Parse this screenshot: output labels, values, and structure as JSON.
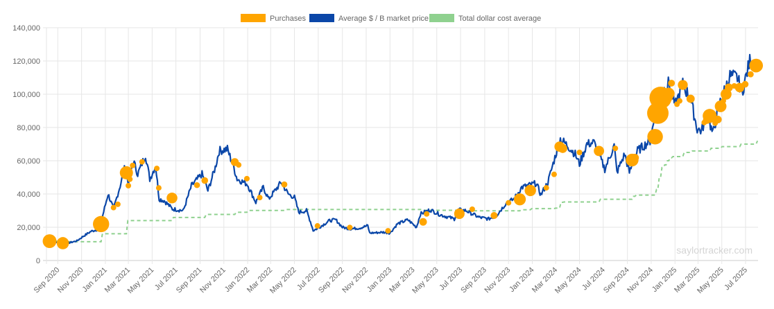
{
  "chart_data": {
    "type": "line",
    "title": "",
    "xlabel": "",
    "ylabel": "",
    "watermark": "saylortracker.com",
    "xlim": [
      "2020-08-03",
      "2025-08-02"
    ],
    "ylim": [
      0,
      140000
    ],
    "grid": true,
    "legend_position": "top",
    "y_ticks": [
      "0",
      "20,000",
      "40,000",
      "60,000",
      "80,000",
      "100,000",
      "120,000",
      "140,000"
    ],
    "y_tick_values": [
      0,
      20000,
      40000,
      60000,
      80000,
      100000,
      120000,
      140000
    ],
    "x_ticks": [
      "Sep 2020",
      "Nov 2020",
      "Jan 2021",
      "Mar 2021",
      "May 2021",
      "Jul 2021",
      "Sep 2021",
      "Nov 2021",
      "Jan 2022",
      "Mar 2022",
      "May 2022",
      "Jul 2022",
      "Sep 2022",
      "Nov 2022",
      "Jan 2023",
      "Mar 2023",
      "May 2023",
      "Jul 2023",
      "Sep 2023",
      "Nov 2023",
      "Jan 2024",
      "Mar 2024",
      "May 2024",
      "Jul 2024",
      "Sep 2024",
      "Nov 2024",
      "Jan 2025",
      "Mar 2025",
      "May 2025",
      "Jul 2025"
    ],
    "x_tick_dates": [
      "2020-09-01",
      "2020-11-01",
      "2021-01-01",
      "2021-03-01",
      "2021-05-01",
      "2021-07-01",
      "2021-09-01",
      "2021-11-01",
      "2022-01-01",
      "2022-03-01",
      "2022-05-01",
      "2022-07-01",
      "2022-09-01",
      "2022-11-01",
      "2023-01-01",
      "2023-03-01",
      "2023-05-01",
      "2023-07-01",
      "2023-09-01",
      "2023-11-01",
      "2024-01-01",
      "2024-03-01",
      "2024-05-01",
      "2024-07-01",
      "2024-09-01",
      "2024-11-01",
      "2025-01-01",
      "2025-03-01",
      "2025-05-01",
      "2025-07-01"
    ],
    "series": [
      {
        "name": "Purchases",
        "color": "#ffa500",
        "kind": "bubble",
        "points": [
          {
            "date": "2020-08-11",
            "price": 11652,
            "btc": 21454
          },
          {
            "date": "2020-09-14",
            "price": 10419,
            "btc": 16796
          },
          {
            "date": "2020-12-21",
            "price": 21925,
            "btc": 29646
          },
          {
            "date": "2021-01-22",
            "price": 31808,
            "btc": 314
          },
          {
            "date": "2021-02-02",
            "price": 33810,
            "btc": 295
          },
          {
            "date": "2021-02-24",
            "price": 52765,
            "btc": 19452
          },
          {
            "date": "2021-03-01",
            "price": 45000,
            "btc": 328
          },
          {
            "date": "2021-03-05",
            "price": 48888,
            "btc": 205
          },
          {
            "date": "2021-03-12",
            "price": 57146,
            "btc": 262
          },
          {
            "date": "2021-04-05",
            "price": 59339,
            "btc": 253
          },
          {
            "date": "2021-05-13",
            "price": 55387,
            "btc": 271
          },
          {
            "date": "2021-05-18",
            "price": 43663,
            "btc": 229
          },
          {
            "date": "2021-06-21",
            "price": 37617,
            "btc": 13005
          },
          {
            "date": "2021-08-24",
            "price": 45294,
            "btc": 3907
          },
          {
            "date": "2021-09-13",
            "price": 48099,
            "btc": 5050
          },
          {
            "date": "2021-11-29",
            "price": 59187,
            "btc": 7002
          },
          {
            "date": "2021-12-09",
            "price": 57477,
            "btc": 1434
          },
          {
            "date": "2021-12-30",
            "price": 49229,
            "btc": 1914
          },
          {
            "date": "2022-02-01",
            "price": 37865,
            "btc": 660
          },
          {
            "date": "2022-04-05",
            "price": 45714,
            "btc": 4167
          },
          {
            "date": "2022-06-29",
            "price": 20817,
            "btc": 480
          },
          {
            "date": "2022-09-20",
            "price": 19851,
            "btc": 301
          },
          {
            "date": "2022-12-27",
            "price": 17871,
            "btc": 2395
          },
          {
            "date": "2023-03-27",
            "price": 23238,
            "btc": 6455
          },
          {
            "date": "2023-04-05",
            "price": 28016,
            "btc": 1045
          },
          {
            "date": "2023-06-28",
            "price": 28136,
            "btc": 12333
          },
          {
            "date": "2023-07-31",
            "price": 30835,
            "btc": 467
          },
          {
            "date": "2023-09-25",
            "price": 27053,
            "btc": 5445
          },
          {
            "date": "2023-11-01",
            "price": 34704,
            "btc": 155
          },
          {
            "date": "2023-11-30",
            "price": 36785,
            "btc": 16130
          },
          {
            "date": "2023-12-27",
            "price": 42110,
            "btc": 14620
          },
          {
            "date": "2024-02-06",
            "price": 43723,
            "btc": 850
          },
          {
            "date": "2024-02-26",
            "price": 51813,
            "btc": 3000
          },
          {
            "date": "2024-03-11",
            "price": 68477,
            "btc": 12000
          },
          {
            "date": "2024-03-19",
            "price": 67382,
            "btc": 9245
          },
          {
            "date": "2024-05-01",
            "price": 65000,
            "btc": 164
          },
          {
            "date": "2024-06-20",
            "price": 65883,
            "btc": 11931
          },
          {
            "date": "2024-08-01",
            "price": 67455,
            "btc": 169
          },
          {
            "date": "2024-09-13",
            "price": 60408,
            "btc": 18300
          },
          {
            "date": "2024-09-20",
            "price": 61750,
            "btc": 7420
          },
          {
            "date": "2024-11-11",
            "price": 74463,
            "btc": 27200
          },
          {
            "date": "2024-11-18",
            "price": 88627,
            "btc": 51780
          },
          {
            "date": "2024-11-25",
            "price": 97862,
            "btc": 55500
          },
          {
            "date": "2024-12-02",
            "price": 95976,
            "btc": 15400
          },
          {
            "date": "2024-12-09",
            "price": 98783,
            "btc": 21550
          },
          {
            "date": "2024-12-16",
            "price": 100386,
            "btc": 15350
          },
          {
            "date": "2024-12-23",
            "price": 106662,
            "btc": 5262
          },
          {
            "date": "2025-01-06",
            "price": 94004,
            "btc": 1070
          },
          {
            "date": "2025-01-13",
            "price": 95972,
            "btc": 2530
          },
          {
            "date": "2025-01-21",
            "price": 105596,
            "btc": 11000
          },
          {
            "date": "2025-02-10",
            "price": 97255,
            "btc": 7633
          },
          {
            "date": "2025-03-17",
            "price": 82981,
            "btc": 130
          },
          {
            "date": "2025-03-24",
            "price": 84529,
            "btc": 6911
          },
          {
            "date": "2025-03-31",
            "price": 86969,
            "btc": 22048
          },
          {
            "date": "2025-04-14",
            "price": 82618,
            "btc": 3459
          },
          {
            "date": "2025-04-21",
            "price": 84785,
            "btc": 6556
          },
          {
            "date": "2025-04-28",
            "price": 92737,
            "btc": 15355
          },
          {
            "date": "2025-05-05",
            "price": 96000,
            "btc": 1895
          },
          {
            "date": "2025-05-12",
            "price": 100000,
            "btc": 13390
          },
          {
            "date": "2025-05-19",
            "price": 104000,
            "btc": 7390
          },
          {
            "date": "2025-06-02",
            "price": 105000,
            "btc": 705
          },
          {
            "date": "2025-06-16",
            "price": 104000,
            "btc": 10100
          },
          {
            "date": "2025-06-30",
            "price": 106000,
            "btc": 4980
          },
          {
            "date": "2025-07-14",
            "price": 112000,
            "btc": 4225
          },
          {
            "date": "2025-07-28",
            "price": 117256,
            "btc": 21021
          }
        ]
      },
      {
        "name": "Average $ / B market price",
        "color": "#0b47a8",
        "kind": "line",
        "points": [
          [
            "2020-08-11",
            11500
          ],
          [
            "2020-09-14",
            10400
          ],
          [
            "2020-10-01",
            10700
          ],
          [
            "2020-10-20",
            11800
          ],
          [
            "2020-11-05",
            14500
          ],
          [
            "2020-11-25",
            17500
          ],
          [
            "2020-12-10",
            18500
          ],
          [
            "2020-12-21",
            23000
          ],
          [
            "2021-01-08",
            40000
          ],
          [
            "2021-01-22",
            31000
          ],
          [
            "2021-02-08",
            45000
          ],
          [
            "2021-02-21",
            57000
          ],
          [
            "2021-03-01",
            46000
          ],
          [
            "2021-03-14",
            60000
          ],
          [
            "2021-03-25",
            52000
          ],
          [
            "2021-04-14",
            63500
          ],
          [
            "2021-04-25",
            49000
          ],
          [
            "2021-05-10",
            57000
          ],
          [
            "2021-05-19",
            37000
          ],
          [
            "2021-06-01",
            36000
          ],
          [
            "2021-06-22",
            31000
          ],
          [
            "2021-07-20",
            30000
          ],
          [
            "2021-08-10",
            45000
          ],
          [
            "2021-09-06",
            52000
          ],
          [
            "2021-09-21",
            42000
          ],
          [
            "2021-10-10",
            56000
          ],
          [
            "2021-10-20",
            66000
          ],
          [
            "2021-11-10",
            67000
          ],
          [
            "2021-11-25",
            57000
          ],
          [
            "2021-12-05",
            49000
          ],
          [
            "2021-12-31",
            46000
          ],
          [
            "2022-01-22",
            35000
          ],
          [
            "2022-02-10",
            44000
          ],
          [
            "2022-02-24",
            37000
          ],
          [
            "2022-03-28",
            47000
          ],
          [
            "2022-04-15",
            40000
          ],
          [
            "2022-05-01",
            38000
          ],
          [
            "2022-05-12",
            29000
          ],
          [
            "2022-06-01",
            30000
          ],
          [
            "2022-06-13",
            22000
          ],
          [
            "2022-06-18",
            18000
          ],
          [
            "2022-07-01",
            19500
          ],
          [
            "2022-07-30",
            24000
          ],
          [
            "2022-08-15",
            24500
          ],
          [
            "2022-09-01",
            20000
          ],
          [
            "2022-09-20",
            19000
          ],
          [
            "2022-10-15",
            19500
          ],
          [
            "2022-11-05",
            21000
          ],
          [
            "2022-11-10",
            16500
          ],
          [
            "2022-12-15",
            17000
          ],
          [
            "2023-01-01",
            16500
          ],
          [
            "2023-01-20",
            22000
          ],
          [
            "2023-02-16",
            24500
          ],
          [
            "2023-03-10",
            20000
          ],
          [
            "2023-03-20",
            28000
          ],
          [
            "2023-04-14",
            30500
          ],
          [
            "2023-05-10",
            27500
          ],
          [
            "2023-06-15",
            25000
          ],
          [
            "2023-06-25",
            30500
          ],
          [
            "2023-07-15",
            30000
          ],
          [
            "2023-08-17",
            26000
          ],
          [
            "2023-09-11",
            25000
          ],
          [
            "2023-10-01",
            27000
          ],
          [
            "2023-10-24",
            34000
          ],
          [
            "2023-11-15",
            37000
          ],
          [
            "2023-12-05",
            44000
          ],
          [
            "2024-01-11",
            46500
          ],
          [
            "2024-01-23",
            39500
          ],
          [
            "2024-02-10",
            47000
          ],
          [
            "2024-02-28",
            62000
          ],
          [
            "2024-03-13",
            73000
          ],
          [
            "2024-04-01",
            69000
          ],
          [
            "2024-04-20",
            64000
          ],
          [
            "2024-05-01",
            58000
          ],
          [
            "2024-05-20",
            70000
          ],
          [
            "2024-06-07",
            71000
          ],
          [
            "2024-07-05",
            55000
          ],
          [
            "2024-07-29",
            69000
          ],
          [
            "2024-08-05",
            53000
          ],
          [
            "2024-08-25",
            64000
          ],
          [
            "2024-09-06",
            53000
          ],
          [
            "2024-09-27",
            66000
          ],
          [
            "2024-10-29",
            72000
          ],
          [
            "2024-11-12",
            88000
          ],
          [
            "2024-11-22",
            99000
          ],
          [
            "2024-12-17",
            107000
          ],
          [
            "2025-01-01",
            93000
          ],
          [
            "2025-01-21",
            106000
          ],
          [
            "2025-02-10",
            97000
          ],
          [
            "2025-02-27",
            79000
          ],
          [
            "2025-03-10",
            78000
          ],
          [
            "2025-03-25",
            88000
          ],
          [
            "2025-04-08",
            76000
          ],
          [
            "2025-04-25",
            94000
          ],
          [
            "2025-05-22",
            111000
          ],
          [
            "2025-06-10",
            110000
          ],
          [
            "2025-06-22",
            101000
          ],
          [
            "2025-07-14",
            122000
          ],
          [
            "2025-07-28",
            118000
          ]
        ]
      },
      {
        "name": "Total dollar cost average",
        "color": "#8fd18f",
        "kind": "dashed-step",
        "points": [
          [
            "2020-08-11",
            11650
          ],
          [
            "2020-09-14",
            11300
          ],
          [
            "2020-12-21",
            16100
          ],
          [
            "2021-02-24",
            24000
          ],
          [
            "2021-06-21",
            25900
          ],
          [
            "2021-09-13",
            27700
          ],
          [
            "2021-11-29",
            29000
          ],
          [
            "2021-12-30",
            30100
          ],
          [
            "2022-04-05",
            30700
          ],
          [
            "2023-03-27",
            30200
          ],
          [
            "2023-06-28",
            29900
          ],
          [
            "2023-11-30",
            30500
          ],
          [
            "2023-12-27",
            31200
          ],
          [
            "2024-02-26",
            31500
          ],
          [
            "2024-03-11",
            35000
          ],
          [
            "2024-03-19",
            35200
          ],
          [
            "2024-06-20",
            36800
          ],
          [
            "2024-09-13",
            38600
          ],
          [
            "2024-09-20",
            39300
          ],
          [
            "2024-11-11",
            42700
          ],
          [
            "2024-11-18",
            49900
          ],
          [
            "2024-11-25",
            55900
          ],
          [
            "2024-12-02",
            57500
          ],
          [
            "2024-12-09",
            60000
          ],
          [
            "2024-12-16",
            61700
          ],
          [
            "2024-12-23",
            62500
          ],
          [
            "2025-01-21",
            65000
          ],
          [
            "2025-02-10",
            65900
          ],
          [
            "2025-03-31",
            67500
          ],
          [
            "2025-04-28",
            68500
          ],
          [
            "2025-06-16",
            70000
          ],
          [
            "2025-07-28",
            72000
          ]
        ]
      }
    ]
  }
}
